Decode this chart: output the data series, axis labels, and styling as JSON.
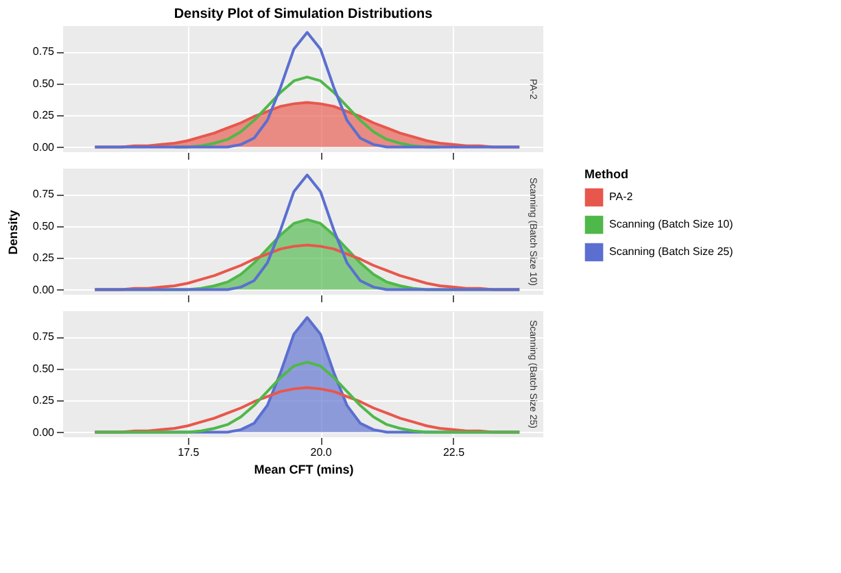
{
  "chart_data": [
    {
      "type": "line",
      "title": "Density Plot of Simulation Distributions",
      "subtitle": "PA-2",
      "tick_labels": "y",
      "grid": true,
      "x": [
        15.75,
        16,
        16.25,
        16.5,
        16.75,
        17,
        17.25,
        17.5,
        17.75,
        18,
        18.25,
        18.5,
        18.75,
        19,
        19.25,
        19.5,
        19.75,
        20,
        20.25,
        20.5,
        20.75,
        21,
        21.25,
        21.5,
        21.75,
        22,
        22.25,
        22.5,
        22.75,
        23,
        23.25,
        23.5,
        23.75
      ],
      "xlim": [
        15.15,
        24.2
      ],
      "xticks": [
        {
          "value": 17.5,
          "label": null
        },
        {
          "value": 20,
          "label": null
        },
        {
          "value": 22.5,
          "label": null
        }
      ],
      "ylim": [
        -0.04,
        0.95
      ],
      "yticks": [
        {
          "value": 0,
          "label": "0.00"
        },
        {
          "value": 0.25,
          "label": "0.25"
        },
        {
          "value": 0.5,
          "label": "0.50"
        },
        {
          "value": 0.75,
          "label": "0.75"
        }
      ],
      "series": [
        {
          "type": "area",
          "color": "#e8574c",
          "values": [
            0,
            0,
            0,
            0.01,
            0.01,
            0.02,
            0.03,
            0.05,
            0.08,
            0.11,
            0.15,
            0.19,
            0.24,
            0.28,
            0.32,
            0.34,
            0.35,
            0.34,
            0.32,
            0.28,
            0.24,
            0.19,
            0.15,
            0.11,
            0.08,
            0.05,
            0.03,
            0.02,
            0.01,
            0.01,
            0,
            0,
            0
          ]
        },
        {
          "color": "#4fb84a",
          "values": [
            null,
            null,
            null,
            null,
            null,
            null,
            0,
            0,
            0.01,
            0.03,
            0.06,
            0.12,
            0.21,
            0.32,
            0.43,
            0.52,
            0.55,
            0.52,
            0.43,
            0.32,
            0.21,
            0.12,
            0.06,
            0.03,
            0.01,
            0,
            0,
            null,
            null,
            null,
            null,
            null,
            null
          ]
        },
        {
          "color": "#5a6fd0",
          "values": [
            0,
            0,
            0,
            0,
            0,
            0,
            0,
            0,
            0,
            0,
            0,
            0.02,
            0.07,
            0.21,
            0.47,
            0.77,
            0.9,
            0.77,
            0.47,
            0.21,
            0.07,
            0.02,
            0,
            0,
            0,
            0,
            0,
            0,
            0,
            0,
            0,
            0,
            0
          ]
        }
      ]
    },
    {
      "type": "line",
      "subtitle": "Scanning (Batch Size 10)",
      "ylabel": "Density",
      "tick_labels": "y",
      "grid": true,
      "legend": "right",
      "legend_title": "Method",
      "x": [
        15.75,
        16,
        16.25,
        16.5,
        16.75,
        17,
        17.25,
        17.5,
        17.75,
        18,
        18.25,
        18.5,
        18.75,
        19,
        19.25,
        19.5,
        19.75,
        20,
        20.25,
        20.5,
        20.75,
        21,
        21.25,
        21.5,
        21.75,
        22,
        22.25,
        22.5,
        22.75,
        23,
        23.25,
        23.5,
        23.75
      ],
      "xlim": [
        15.15,
        24.2
      ],
      "xticks": [
        {
          "value": 17.5,
          "label": null
        },
        {
          "value": 20,
          "label": null
        },
        {
          "value": 22.5,
          "label": null
        }
      ],
      "ylim": [
        -0.04,
        0.95
      ],
      "yticks": [
        {
          "value": 0,
          "label": "0.00"
        },
        {
          "value": 0.25,
          "label": "0.25"
        },
        {
          "value": 0.5,
          "label": "0.50"
        },
        {
          "value": 0.75,
          "label": "0.75"
        }
      ],
      "series": [
        {
          "name": "PA-2",
          "color": "#e8574c",
          "values": [
            0,
            0,
            0,
            0.01,
            0.01,
            0.02,
            0.03,
            0.05,
            0.08,
            0.11,
            0.15,
            0.19,
            0.24,
            0.28,
            0.32,
            0.34,
            0.35,
            0.34,
            0.32,
            0.28,
            0.24,
            0.19,
            0.15,
            0.11,
            0.08,
            0.05,
            0.03,
            0.02,
            0.01,
            0.01,
            0,
            0,
            0
          ]
        },
        {
          "name": "Scanning (Batch Size 10)",
          "type": "area",
          "color": "#4fb84a",
          "values": [
            0,
            0,
            0,
            0,
            0,
            0,
            0,
            0,
            0.01,
            0.03,
            0.06,
            0.12,
            0.21,
            0.32,
            0.43,
            0.52,
            0.55,
            0.52,
            0.43,
            0.32,
            0.21,
            0.12,
            0.06,
            0.03,
            0.01,
            0,
            0,
            0,
            0,
            0,
            0,
            0,
            0
          ]
        },
        {
          "name": "Scanning (Batch Size 25)",
          "color": "#5a6fd0",
          "values": [
            0,
            0,
            0,
            0,
            0,
            0,
            0,
            0,
            0,
            0,
            0,
            0.02,
            0.07,
            0.21,
            0.47,
            0.77,
            0.9,
            0.77,
            0.47,
            0.21,
            0.07,
            0.02,
            0,
            0,
            0,
            0,
            0,
            0,
            0,
            0,
            0,
            0,
            0
          ]
        }
      ]
    },
    {
      "type": "line",
      "subtitle": "Scanning (Batch Size 25)",
      "xlabel": "Mean CFT (mins)",
      "grid": true,
      "x": [
        15.75,
        16,
        16.25,
        16.5,
        16.75,
        17,
        17.25,
        17.5,
        17.75,
        18,
        18.25,
        18.5,
        18.75,
        19,
        19.25,
        19.5,
        19.75,
        20,
        20.25,
        20.5,
        20.75,
        21,
        21.25,
        21.5,
        21.75,
        22,
        22.25,
        22.5,
        22.75,
        23,
        23.25,
        23.5,
        23.75
      ],
      "xlim": [
        15.15,
        24.2
      ],
      "xticks": [
        {
          "value": 17.5,
          "label": "17.5"
        },
        {
          "value": 20,
          "label": "20.0"
        },
        {
          "value": 22.5,
          "label": "22.5"
        }
      ],
      "ylim": [
        -0.04,
        0.95
      ],
      "yticks": [
        {
          "value": 0,
          "label": "0.00"
        },
        {
          "value": 0.25,
          "label": "0.25"
        },
        {
          "value": 0.5,
          "label": "0.50"
        },
        {
          "value": 0.75,
          "label": "0.75"
        }
      ],
      "series": [
        {
          "color": "#e8574c",
          "values": [
            0,
            0,
            0,
            0.01,
            0.01,
            0.02,
            0.03,
            0.05,
            0.08,
            0.11,
            0.15,
            0.19,
            0.24,
            0.28,
            0.32,
            0.34,
            0.35,
            0.34,
            0.32,
            0.28,
            0.24,
            0.19,
            0.15,
            0.11,
            0.08,
            0.05,
            0.03,
            0.02,
            0.01,
            0.01,
            0,
            0,
            0
          ]
        },
        {
          "color": "#4fb84a",
          "values": [
            0,
            0,
            0,
            0,
            0,
            0,
            0,
            0,
            0.01,
            0.03,
            0.06,
            0.12,
            0.21,
            0.32,
            0.43,
            0.52,
            0.55,
            0.52,
            0.43,
            0.32,
            0.21,
            0.12,
            0.06,
            0.03,
            0.01,
            0,
            0,
            0,
            0,
            0,
            0,
            0,
            0
          ]
        },
        {
          "type": "area",
          "color": "#5a6fd0",
          "values": [
            0,
            0,
            0,
            0,
            0,
            0,
            0,
            0,
            0,
            0,
            0,
            0.02,
            0.07,
            0.21,
            0.47,
            0.77,
            0.9,
            0.77,
            0.47,
            0.21,
            0.07,
            0.02,
            0,
            0,
            0,
            0,
            0,
            0,
            0,
            0,
            0,
            0,
            0
          ]
        }
      ]
    }
  ]
}
